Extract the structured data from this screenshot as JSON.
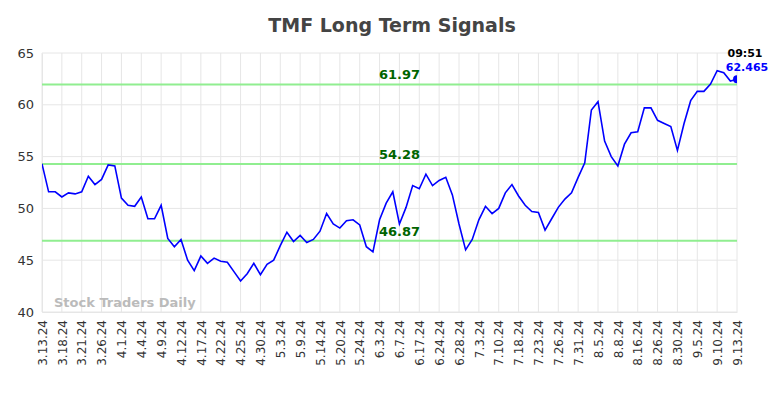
{
  "chart_data": {
    "type": "line",
    "title": "TMF Long Term Signals",
    "categories": [
      "3.13.24",
      null,
      null,
      "3.18.24",
      null,
      null,
      "3.21.24",
      null,
      null,
      "3.26.24",
      null,
      null,
      "4.1.24",
      null,
      null,
      "4.4.24",
      null,
      null,
      "4.9.24",
      null,
      null,
      "4.12.24",
      null,
      null,
      "4.17.24",
      null,
      null,
      "4.22.24",
      null,
      null,
      "4.25.24",
      null,
      null,
      "4.30.24",
      null,
      null,
      "5.3.24",
      null,
      null,
      "5.9.24",
      null,
      null,
      "5.14.24",
      null,
      null,
      "5.20.24",
      null,
      null,
      "5.24.24",
      null,
      null,
      "6.3.24",
      null,
      null,
      "6.7.24",
      null,
      null,
      "6.17.24",
      null,
      null,
      "6.24.24",
      null,
      null,
      "6.28.24",
      null,
      null,
      "7.3.24",
      null,
      null,
      "7.10.24",
      null,
      null,
      "7.18.24",
      null,
      null,
      "7.23.24",
      null,
      null,
      "7.26.24",
      null,
      null,
      "7.31.24",
      null,
      null,
      "8.5.24",
      null,
      null,
      "8.8.24",
      null,
      null,
      "8.16.24",
      null,
      null,
      "8.26.24",
      null,
      null,
      "8.30.24",
      null,
      null,
      "9.5.24",
      null,
      null,
      "9.10.24",
      null,
      null,
      "9.13.24"
    ],
    "values": [
      54.3,
      51.6,
      51.6,
      51.1,
      51.5,
      51.4,
      51.6,
      53.1,
      52.3,
      52.8,
      54.2,
      54.1,
      51.0,
      50.3,
      50.2,
      51.1,
      49.0,
      49.0,
      50.3,
      47.1,
      46.3,
      47.0,
      45.0,
      44.0,
      45.4,
      44.7,
      45.2,
      44.9,
      44.8,
      43.9,
      43.0,
      43.7,
      44.7,
      43.6,
      44.6,
      45.0,
      46.4,
      47.7,
      46.8,
      47.4,
      46.7,
      47.0,
      47.8,
      49.5,
      48.5,
      48.1,
      48.8,
      48.9,
      48.4,
      46.3,
      45.8,
      48.9,
      50.5,
      51.6,
      48.5,
      50.1,
      52.2,
      51.9,
      53.3,
      52.2,
      52.7,
      53.0,
      51.3,
      48.5,
      46.0,
      47.0,
      48.9,
      50.2,
      49.5,
      50.0,
      51.5,
      52.3,
      51.2,
      50.3,
      49.7,
      49.6,
      47.9,
      49.0,
      50.1,
      50.9,
      51.5,
      53.0,
      54.4,
      59.5,
      60.3,
      56.5,
      55.0,
      54.1,
      56.2,
      57.3,
      57.4,
      59.7,
      59.7,
      58.5,
      58.2,
      57.9,
      55.6,
      58.2,
      60.4,
      61.3,
      61.3,
      62.0,
      63.3,
      63.1,
      62.3,
      62.465
    ],
    "color": "#0000ff",
    "ylim": [
      40,
      65
    ],
    "yticks": [
      40,
      45,
      50,
      55,
      60,
      65
    ],
    "grid": true,
    "levels": [
      61.97,
      54.28,
      46.87
    ],
    "time_label": "09:51",
    "watermark": "Stock Traders Daily"
  }
}
